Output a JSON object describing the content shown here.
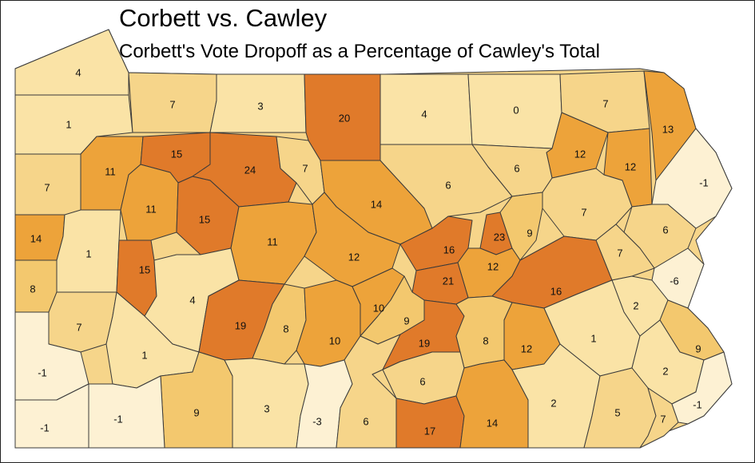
{
  "title": "Corbett vs. Cawley",
  "subtitle": "Corbett's Vote Dropoff as a Percentage of Cawley's Total",
  "colors": {
    "lowest": "#fdf1d3",
    "low": "#fae3a6",
    "mid_low": "#f6d58a",
    "mid": "#f3c86e",
    "mid_high": "#eda33a",
    "high": "#e07a2a",
    "border": "#3a3a3a"
  },
  "counties": [
    {
      "id": "c1",
      "value": "4"
    },
    {
      "id": "c2",
      "value": "7"
    },
    {
      "id": "c3",
      "value": "3"
    },
    {
      "id": "c4",
      "value": "20"
    },
    {
      "id": "c5",
      "value": "4"
    },
    {
      "id": "c6",
      "value": "0"
    },
    {
      "id": "c7",
      "value": "7"
    },
    {
      "id": "c8",
      "value": "1"
    },
    {
      "id": "c9",
      "value": "13"
    },
    {
      "id": "c10",
      "value": "15"
    },
    {
      "id": "c11",
      "value": "11"
    },
    {
      "id": "c12",
      "value": "24"
    },
    {
      "id": "c13",
      "value": "7"
    },
    {
      "id": "c14",
      "value": "12"
    },
    {
      "id": "c15",
      "value": "12"
    },
    {
      "id": "c16",
      "value": "7"
    },
    {
      "id": "c17",
      "value": "6"
    },
    {
      "id": "c18",
      "value": "6"
    },
    {
      "id": "c19",
      "value": "14"
    },
    {
      "id": "c20",
      "value": "-1"
    },
    {
      "id": "c21",
      "value": "11"
    },
    {
      "id": "c22",
      "value": "15"
    },
    {
      "id": "c23",
      "value": "7"
    },
    {
      "id": "c24",
      "value": "14"
    },
    {
      "id": "c25",
      "value": "11"
    },
    {
      "id": "c26",
      "value": "1"
    },
    {
      "id": "c27",
      "value": "23"
    },
    {
      "id": "c28",
      "value": "9"
    },
    {
      "id": "c29",
      "value": "16"
    },
    {
      "id": "c30",
      "value": "6"
    },
    {
      "id": "c31",
      "value": "12"
    },
    {
      "id": "c32",
      "value": "15"
    },
    {
      "id": "c33",
      "value": "12"
    },
    {
      "id": "c34",
      "value": "7"
    },
    {
      "id": "c35",
      "value": "8"
    },
    {
      "id": "c36",
      "value": "21"
    },
    {
      "id": "c37",
      "value": "-6"
    },
    {
      "id": "c38",
      "value": "4"
    },
    {
      "id": "c39",
      "value": "16"
    },
    {
      "id": "c40",
      "value": "10"
    },
    {
      "id": "c41",
      "value": "2"
    },
    {
      "id": "c42",
      "value": "7"
    },
    {
      "id": "c43",
      "value": "19"
    },
    {
      "id": "c44",
      "value": "8"
    },
    {
      "id": "c45",
      "value": "9"
    },
    {
      "id": "c46",
      "value": "1"
    },
    {
      "id": "c47",
      "value": "10"
    },
    {
      "id": "c48",
      "value": "19"
    },
    {
      "id": "c49",
      "value": "8"
    },
    {
      "id": "c50",
      "value": "12"
    },
    {
      "id": "c51",
      "value": "1"
    },
    {
      "id": "c52",
      "value": "9"
    },
    {
      "id": "c53",
      "value": "-1"
    },
    {
      "id": "c54",
      "value": "6"
    },
    {
      "id": "c55",
      "value": "2"
    },
    {
      "id": "c56",
      "value": "9"
    },
    {
      "id": "c57",
      "value": "3"
    },
    {
      "id": "c58",
      "value": "-3"
    },
    {
      "id": "c59",
      "value": "6"
    },
    {
      "id": "c60",
      "value": "17"
    },
    {
      "id": "c61",
      "value": "14"
    },
    {
      "id": "c62",
      "value": "2"
    },
    {
      "id": "c63",
      "value": "5"
    },
    {
      "id": "c64",
      "value": "7"
    },
    {
      "id": "c65",
      "value": "-1"
    },
    {
      "id": "c66",
      "value": "-1"
    },
    {
      "id": "c67",
      "value": "-1"
    }
  ]
}
